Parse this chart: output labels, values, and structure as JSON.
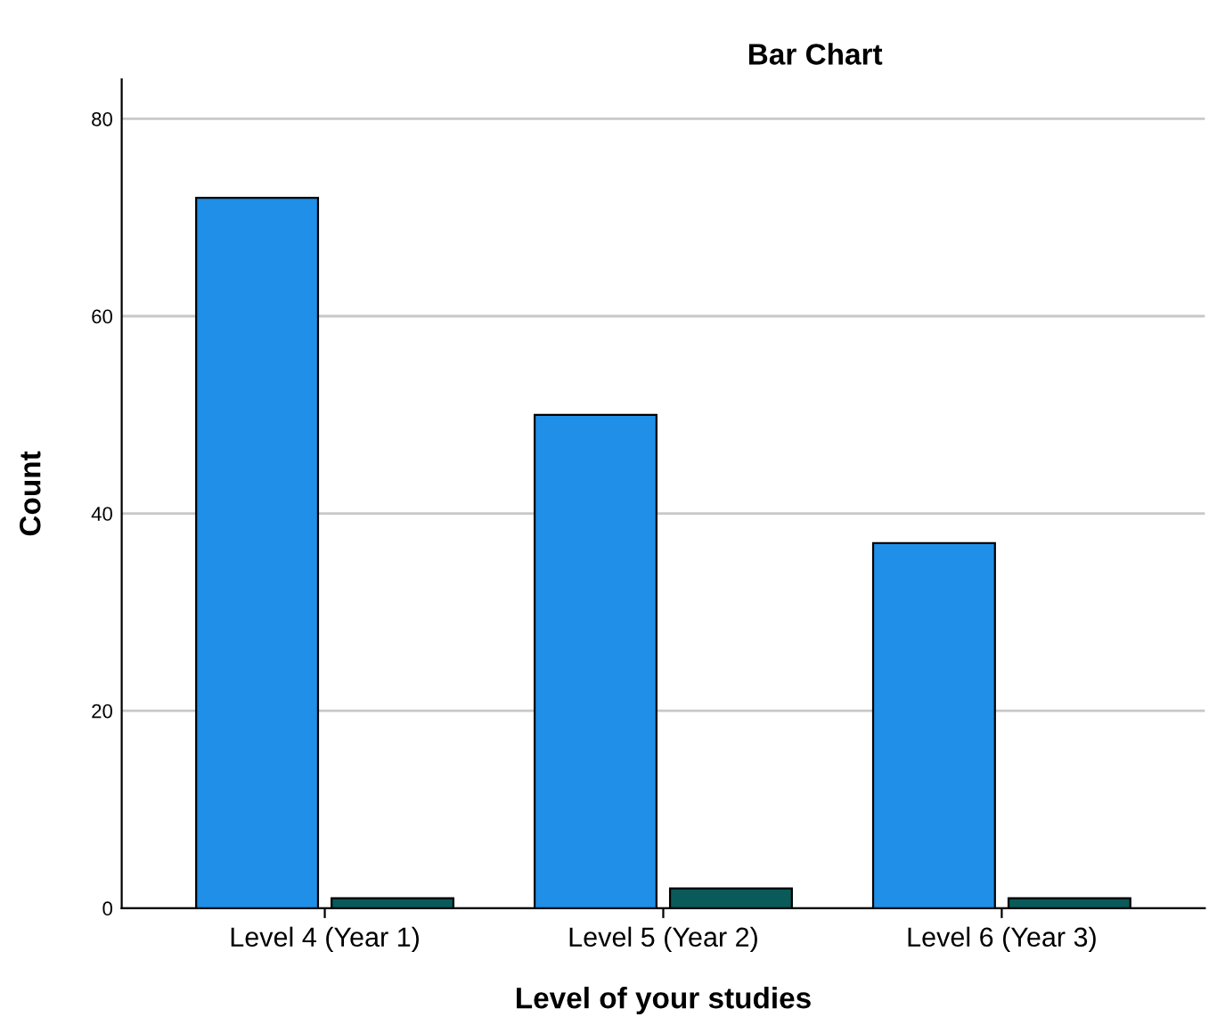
{
  "chart_data": {
    "type": "bar",
    "title": "Bar Chart",
    "xlabel": "Level of your studies",
    "ylabel": "Count",
    "categories": [
      "Level 4 (Year 1)",
      "Level 5 (Year 2)",
      "Level 6 (Year 3)"
    ],
    "series": [
      {
        "color": "#1f8fe8",
        "values": [
          72,
          50,
          37
        ]
      },
      {
        "color": "#0a5a5a",
        "values": [
          1,
          2,
          1
        ]
      }
    ],
    "ylim": [
      0,
      84
    ],
    "yticks": [
      0,
      20,
      40,
      60,
      80
    ],
    "grid": "y",
    "legend": false
  }
}
